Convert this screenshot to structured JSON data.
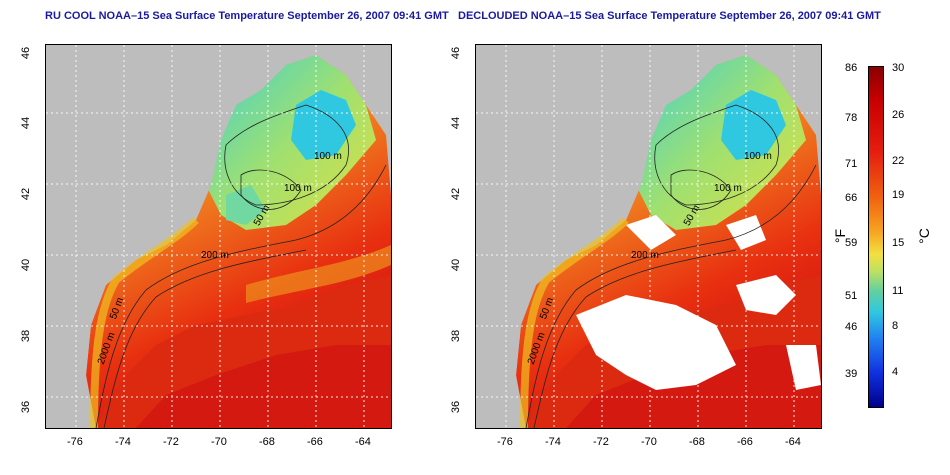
{
  "left_map": {
    "title": "RU COOL NOAA–15 Sea Surface Temperature September 26, 2007 09:41 GMT",
    "contours": [
      "100 m",
      "100 m",
      "50 m",
      "200 m",
      "50 m",
      "2000 m"
    ]
  },
  "right_map": {
    "title": "DECLOUDED NOAA–15 Sea Surface Temperature September 26, 2007 09:41 GMT",
    "contours": [
      "100 m",
      "100 m",
      "50 m",
      "200 m",
      "50 m",
      "2000 m"
    ]
  },
  "y_ticks": [
    "46",
    "44",
    "42",
    "40",
    "38",
    "36"
  ],
  "x_ticks": [
    "-76",
    "-74",
    "-72",
    "-70",
    "-68",
    "-66",
    "-64"
  ],
  "colorbar": {
    "unit_f": "°F",
    "unit_c": "°C",
    "fahrenheit": [
      "86",
      "78",
      "71",
      "66",
      "59",
      "51",
      "46",
      "39"
    ],
    "celsius": [
      "30",
      "26",
      "22",
      "19",
      "15",
      "11",
      "8",
      "4"
    ]
  }
}
